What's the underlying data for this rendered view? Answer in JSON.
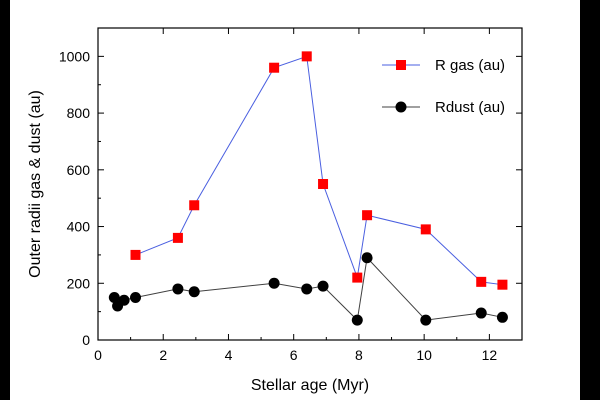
{
  "chart_data": {
    "type": "line",
    "xlabel": "Stellar age (Myr)",
    "ylabel": "Outer radii gas & dust (au)",
    "xlim": [
      0,
      13
    ],
    "ylim": [
      0,
      1100
    ],
    "xticks": [
      0,
      2,
      4,
      6,
      8,
      10,
      12
    ],
    "yticks": [
      0,
      200,
      400,
      600,
      800,
      1000
    ],
    "legend_position": "top-right",
    "colors": {
      "gas_line": "#4a5fe0",
      "gas_marker": "#ff0000",
      "dust_line": "#404040",
      "dust_marker": "#000000"
    },
    "series": [
      {
        "name": "R gas (au)",
        "marker": "square",
        "points": [
          {
            "x": 1.15,
            "y": 300
          },
          {
            "x": 2.45,
            "y": 360
          },
          {
            "x": 2.95,
            "y": 475
          },
          {
            "x": 5.4,
            "y": 960
          },
          {
            "x": 6.4,
            "y": 1000
          },
          {
            "x": 6.9,
            "y": 550
          },
          {
            "x": 7.95,
            "y": 220
          },
          {
            "x": 8.25,
            "y": 440
          },
          {
            "x": 10.05,
            "y": 390
          },
          {
            "x": 11.75,
            "y": 205
          },
          {
            "x": 12.4,
            "y": 195
          }
        ]
      },
      {
        "name": "Rdust (au)",
        "marker": "circle",
        "points": [
          {
            "x": 0.5,
            "y": 150
          },
          {
            "x": 0.6,
            "y": 120
          },
          {
            "x": 0.8,
            "y": 140
          },
          {
            "x": 1.15,
            "y": 150
          },
          {
            "x": 2.45,
            "y": 180
          },
          {
            "x": 2.95,
            "y": 170
          },
          {
            "x": 5.4,
            "y": 200
          },
          {
            "x": 6.4,
            "y": 180
          },
          {
            "x": 6.9,
            "y": 190
          },
          {
            "x": 7.95,
            "y": 70
          },
          {
            "x": 8.25,
            "y": 290
          },
          {
            "x": 10.05,
            "y": 70
          },
          {
            "x": 11.75,
            "y": 95
          },
          {
            "x": 12.4,
            "y": 80
          }
        ]
      }
    ]
  }
}
